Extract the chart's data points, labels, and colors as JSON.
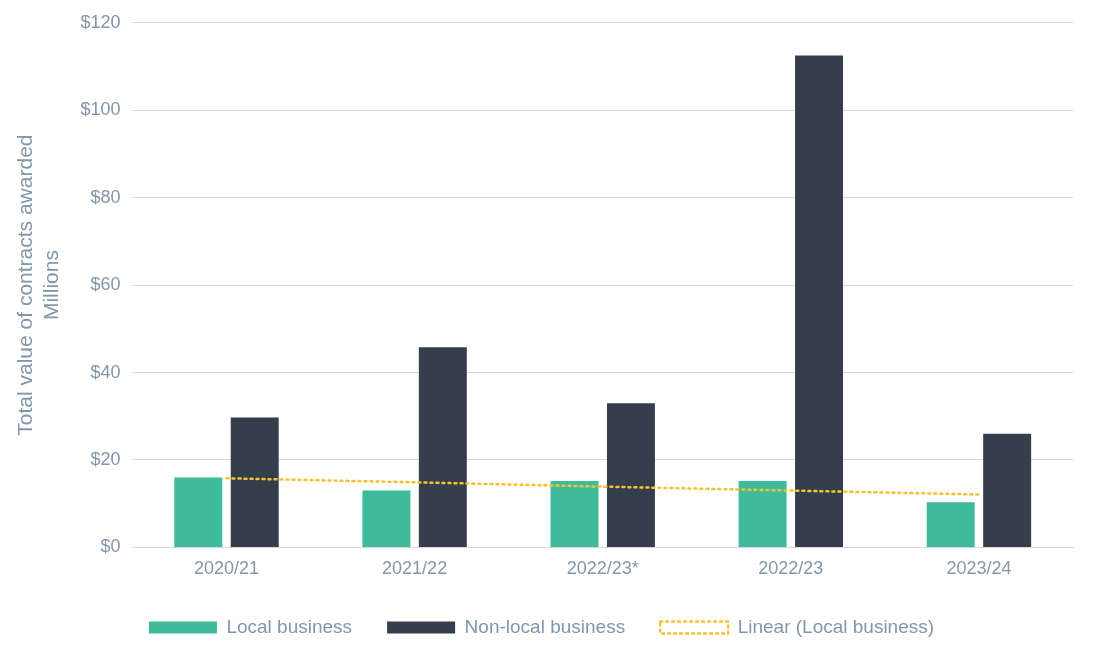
{
  "chart_data": {
    "type": "bar",
    "ylabel": "Total value of contracts awarded\nMillions",
    "categories": [
      "2020/21",
      "2021/22",
      "2022/23*",
      "2022/23",
      "2023/24"
    ],
    "series": [
      {
        "name": "Local business",
        "color": "#3dbb9a",
        "values": [
          16,
          13,
          15.2,
          15.2,
          10.3
        ]
      },
      {
        "name": "Non-local business",
        "color": "#343f4b",
        "values": [
          29.7,
          45.8,
          33,
          112.5,
          26
        ]
      },
      {
        "name": "Linear (Local business)",
        "type": "line",
        "line_style": "dotted",
        "marker": "none",
        "color": "#f5c232",
        "x": [
          "2020/21",
          "2021/22",
          "2022/23*",
          "2022/23",
          "2023/24"
        ],
        "values": [
          15.8,
          14.9,
          13.9,
          13.0,
          12.1
        ]
      }
    ],
    "ylim": [
      0,
      120
    ],
    "yticks": [
      {
        "value": 0,
        "label": "$0"
      },
      {
        "value": 20,
        "label": "$20"
      },
      {
        "value": 40,
        "label": "$40"
      },
      {
        "value": 60,
        "label": "$60"
      },
      {
        "value": 80,
        "label": "$80"
      },
      {
        "value": 100,
        "label": "$100"
      },
      {
        "value": 120,
        "label": "$120"
      }
    ],
    "grid": "y",
    "legend": "bottom"
  }
}
